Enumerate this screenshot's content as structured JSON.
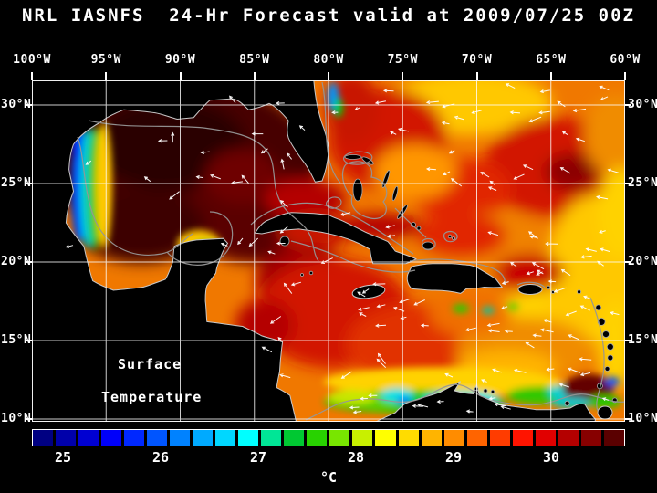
{
  "title": "NRL IASNFS  24-Hr Forecast valid at 2009/07/25 00Z",
  "axes": {
    "lon_labels": [
      "100°W",
      "95°W",
      "90°W",
      "85°W",
      "80°W",
      "75°W",
      "70°W",
      "65°W",
      "60°W"
    ],
    "lat_labels": [
      "30°N",
      "25°N",
      "20°N",
      "15°N",
      "10°N"
    ]
  },
  "map": {
    "annotation_line1": "Surface",
    "annotation_line2": "Temperature"
  },
  "colorbar": {
    "unit": "°C",
    "tick_labels": [
      "25",
      "26",
      "27",
      "28",
      "29",
      "30"
    ],
    "segment_colors": [
      "#000082",
      "#0000aa",
      "#0000d2",
      "#0000fa",
      "#0028ff",
      "#0055ff",
      "#0082ff",
      "#00aaff",
      "#00d7ff",
      "#00ffff",
      "#00e696",
      "#00c832",
      "#28d200",
      "#78e600",
      "#c8f000",
      "#ffff00",
      "#ffdc00",
      "#ffb400",
      "#ff8c00",
      "#ff6400",
      "#ff3c00",
      "#ff1400",
      "#e10000",
      "#b40000",
      "#870000",
      "#5a0000"
    ]
  },
  "colors": {
    "background": "#000000",
    "text": "#ffffff",
    "grid": "#ffffff",
    "coastline": "#c8c8c8",
    "bathymetry_contour": "#969696",
    "vector_arrows": "#ffffff"
  }
}
